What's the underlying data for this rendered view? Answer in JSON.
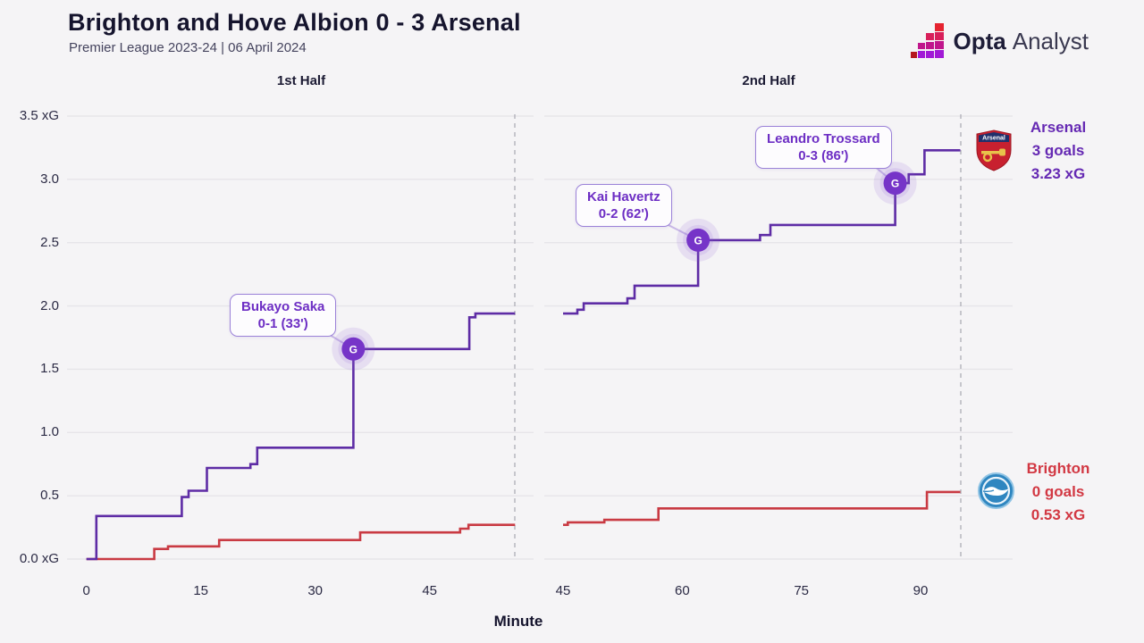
{
  "header": {
    "title": "Brighton and Hove Albion 0 - 3 Arsenal",
    "subtitle": "Premier League 2023-24 | 06 April 2024"
  },
  "branding": {
    "name_bold": "Opta",
    "name_light": "Analyst"
  },
  "chart_data": {
    "type": "line",
    "variant": "step-after-cumulative-xg",
    "xlabel": "Minute",
    "ylim": [
      0,
      3.5
    ],
    "grid": true,
    "y_ticks": [
      {
        "v": 3.5,
        "label": "3.5 xG"
      },
      {
        "v": 3.0,
        "label": "3.0"
      },
      {
        "v": 2.5,
        "label": "2.5"
      },
      {
        "v": 2.0,
        "label": "2.0"
      },
      {
        "v": 1.5,
        "label": "1.5"
      },
      {
        "v": 1.0,
        "label": "1.0"
      },
      {
        "v": 0.5,
        "label": "0.5"
      },
      {
        "v": 0.0,
        "label": "0.0 xG"
      }
    ],
    "panels": [
      {
        "label": "1st Half",
        "x_ticks": [
          0,
          15,
          30,
          45
        ]
      },
      {
        "label": "2nd Half",
        "x_ticks": [
          45,
          60,
          75,
          90
        ]
      }
    ],
    "series": [
      {
        "name": "Brighton",
        "color": "#c93a43",
        "panels": [
          [
            [
              0,
              0
            ],
            [
              8.9,
              0.08
            ],
            [
              10.7,
              0.1
            ],
            [
              17.4,
              0.15
            ],
            [
              35.9,
              0.21
            ],
            [
              49,
              0.24
            ],
            [
              50.1,
              0.27
            ],
            [
              56.2,
              0.27
            ]
          ],
          [
            [
              45,
              0.27
            ],
            [
              45.6,
              0.29
            ],
            [
              50.2,
              0.31
            ],
            [
              57,
              0.4
            ],
            [
              90.8,
              0.53
            ],
            [
              95,
              0.53
            ]
          ]
        ]
      },
      {
        "name": "Arsenal",
        "color": "#5e2ca5",
        "panels": [
          [
            [
              0,
              0
            ],
            [
              1.3,
              0.34
            ],
            [
              12.5,
              0.49
            ],
            [
              13.4,
              0.54
            ],
            [
              15.8,
              0.72
            ],
            [
              21.5,
              0.75
            ],
            [
              22.4,
              0.88
            ],
            [
              35,
              1.66
            ],
            [
              50.2,
              1.91
            ],
            [
              51,
              1.94
            ],
            [
              56.2,
              1.94
            ]
          ],
          [
            [
              45,
              1.94
            ],
            [
              46.8,
              1.97
            ],
            [
              47.6,
              2.02
            ],
            [
              53.1,
              2.06
            ],
            [
              54,
              2.16
            ],
            [
              62,
              2.52
            ],
            [
              69.8,
              2.56
            ],
            [
              71.1,
              2.64
            ],
            [
              86.8,
              2.97
            ],
            [
              88.5,
              3.04
            ],
            [
              90.5,
              3.23
            ],
            [
              95,
              3.23
            ]
          ]
        ]
      }
    ],
    "goals": [
      {
        "player": "Bukayo Saka",
        "score_line": "0-1 (33')",
        "panel": 0,
        "minute": 35,
        "xg": 1.66,
        "marker": "G"
      },
      {
        "player": "Kai Havertz",
        "score_line": "0-2 (62')",
        "panel": 1,
        "minute": 62,
        "xg": 2.52,
        "marker": "G"
      },
      {
        "player": "Leandro Trossard",
        "score_line": "0-3 (86')",
        "panel": 1,
        "minute": 86.8,
        "xg": 2.97,
        "marker": "G"
      }
    ],
    "teams": [
      {
        "name": "Arsenal",
        "goals_label": "3 goals",
        "xg_label": "3.23 xG",
        "color": "#6529b3"
      },
      {
        "name": "Brighton",
        "goals_label": "0 goals",
        "xg_label": "0.53 xG",
        "color": "#d23843"
      }
    ],
    "accent_colors": {
      "goal_marker": "#7634c8",
      "annotation_text": "#6d2ec4",
      "gridline": "#e6e5e9",
      "dashed_line": "#b7b6be"
    }
  }
}
